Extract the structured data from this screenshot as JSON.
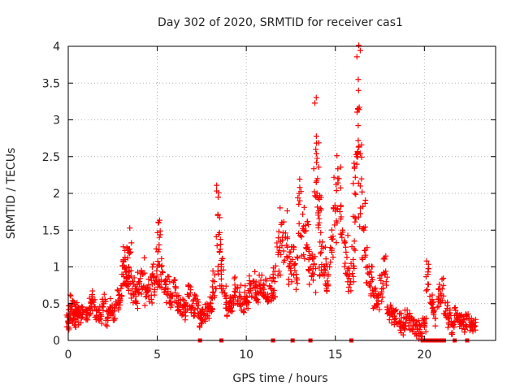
{
  "colors": {
    "points": "#ff0000",
    "text": "#222222"
  },
  "chart_data": {
    "type": "scatter",
    "title": "Day 302 of 2020, SRMTID for receiver cas1",
    "xlabel": "GPS time / hours",
    "ylabel": "SRMTID / TECUs",
    "xlim": [
      0,
      24
    ],
    "ylim": [
      0,
      4
    ],
    "xticks": [
      "0",
      "5",
      "10",
      "15",
      "20"
    ],
    "yticks": [
      "0",
      "0.5",
      "1",
      "1.5",
      "2",
      "2.5",
      "3",
      "3.5",
      "4"
    ],
    "marker": "plus",
    "grid": true,
    "series": [
      {
        "name": "SRMTID",
        "x": [
          0.0,
          0.1,
          0.2,
          0.3,
          0.4,
          0.5,
          0.6,
          0.8,
          1.0,
          1.2,
          1.4,
          1.6,
          1.8,
          2.0,
          2.2,
          2.4,
          2.6,
          2.8,
          3.0,
          3.1,
          3.2,
          3.3,
          3.4,
          3.5,
          3.6,
          3.8,
          4.0,
          4.2,
          4.4,
          4.6,
          4.8,
          5.0,
          5.1,
          5.2,
          5.4,
          5.6,
          5.8,
          6.0,
          6.2,
          6.4,
          6.6,
          6.8,
          7.0,
          7.2,
          7.4,
          7.6,
          7.8,
          8.0,
          8.2,
          8.4,
          8.5,
          8.6,
          8.8,
          9.0,
          9.2,
          9.4,
          9.6,
          9.8,
          10.0,
          10.2,
          10.4,
          10.6,
          10.8,
          11.0,
          11.2,
          11.4,
          11.6,
          11.8,
          12.0,
          12.2,
          12.4,
          12.6,
          12.8,
          13.0,
          13.2,
          13.4,
          13.6,
          13.8,
          13.9,
          14.0,
          14.1,
          14.2,
          14.4,
          14.6,
          14.8,
          15.0,
          15.2,
          15.4,
          15.6,
          15.8,
          16.0,
          16.1,
          16.2,
          16.3,
          16.4,
          16.6,
          16.8,
          17.0,
          17.2,
          17.4,
          17.6,
          17.8,
          18.0,
          18.2,
          18.4,
          18.6,
          18.8,
          19.0,
          19.2,
          19.4,
          19.6,
          19.8,
          20.0,
          20.2,
          20.4,
          20.6,
          20.8,
          21.0,
          21.2,
          21.4,
          21.6,
          21.8,
          22.0,
          22.2,
          22.4,
          22.6,
          22.8
        ],
        "y": [
          0.25,
          0.35,
          0.5,
          0.3,
          0.4,
          0.3,
          0.45,
          0.35,
          0.3,
          0.45,
          0.55,
          0.4,
          0.35,
          0.5,
          0.3,
          0.45,
          0.4,
          0.55,
          0.6,
          0.9,
          1.1,
          0.8,
          1.0,
          1.2,
          0.7,
          0.6,
          0.8,
          0.9,
          0.6,
          0.7,
          0.85,
          1.0,
          1.3,
          0.9,
          0.8,
          0.7,
          0.6,
          0.65,
          0.5,
          0.45,
          0.4,
          0.6,
          0.45,
          0.5,
          0.3,
          0.35,
          0.4,
          0.5,
          0.8,
          1.7,
          1.2,
          0.9,
          0.6,
          0.4,
          0.5,
          0.7,
          0.6,
          0.5,
          0.6,
          0.7,
          0.8,
          0.65,
          0.7,
          0.75,
          0.6,
          0.7,
          0.8,
          1.2,
          1.6,
          1.4,
          1.0,
          1.1,
          0.9,
          1.9,
          1.5,
          1.3,
          1.0,
          0.9,
          2.6,
          2.2,
          1.6,
          1.2,
          1.0,
          0.9,
          1.2,
          1.8,
          2.2,
          1.5,
          1.2,
          0.9,
          1.1,
          2.0,
          2.5,
          3.4,
          2.1,
          1.5,
          1.0,
          0.8,
          0.6,
          0.5,
          0.7,
          0.9,
          0.4,
          0.35,
          0.3,
          0.25,
          0.2,
          0.3,
          0.25,
          0.2,
          0.15,
          0.1,
          0.2,
          0.9,
          0.5,
          0.3,
          0.6,
          0.7,
          0.4,
          0.3,
          0.2,
          0.35,
          0.25,
          0.2,
          0.3,
          0.25,
          0.2
        ],
        "zero_x": [
          7.4,
          8.6,
          11.5,
          12.6,
          13.6,
          15.9,
          19.9,
          20.1,
          20.3,
          20.5,
          20.7,
          20.9,
          21.1,
          21.7,
          22.4
        ]
      }
    ]
  }
}
